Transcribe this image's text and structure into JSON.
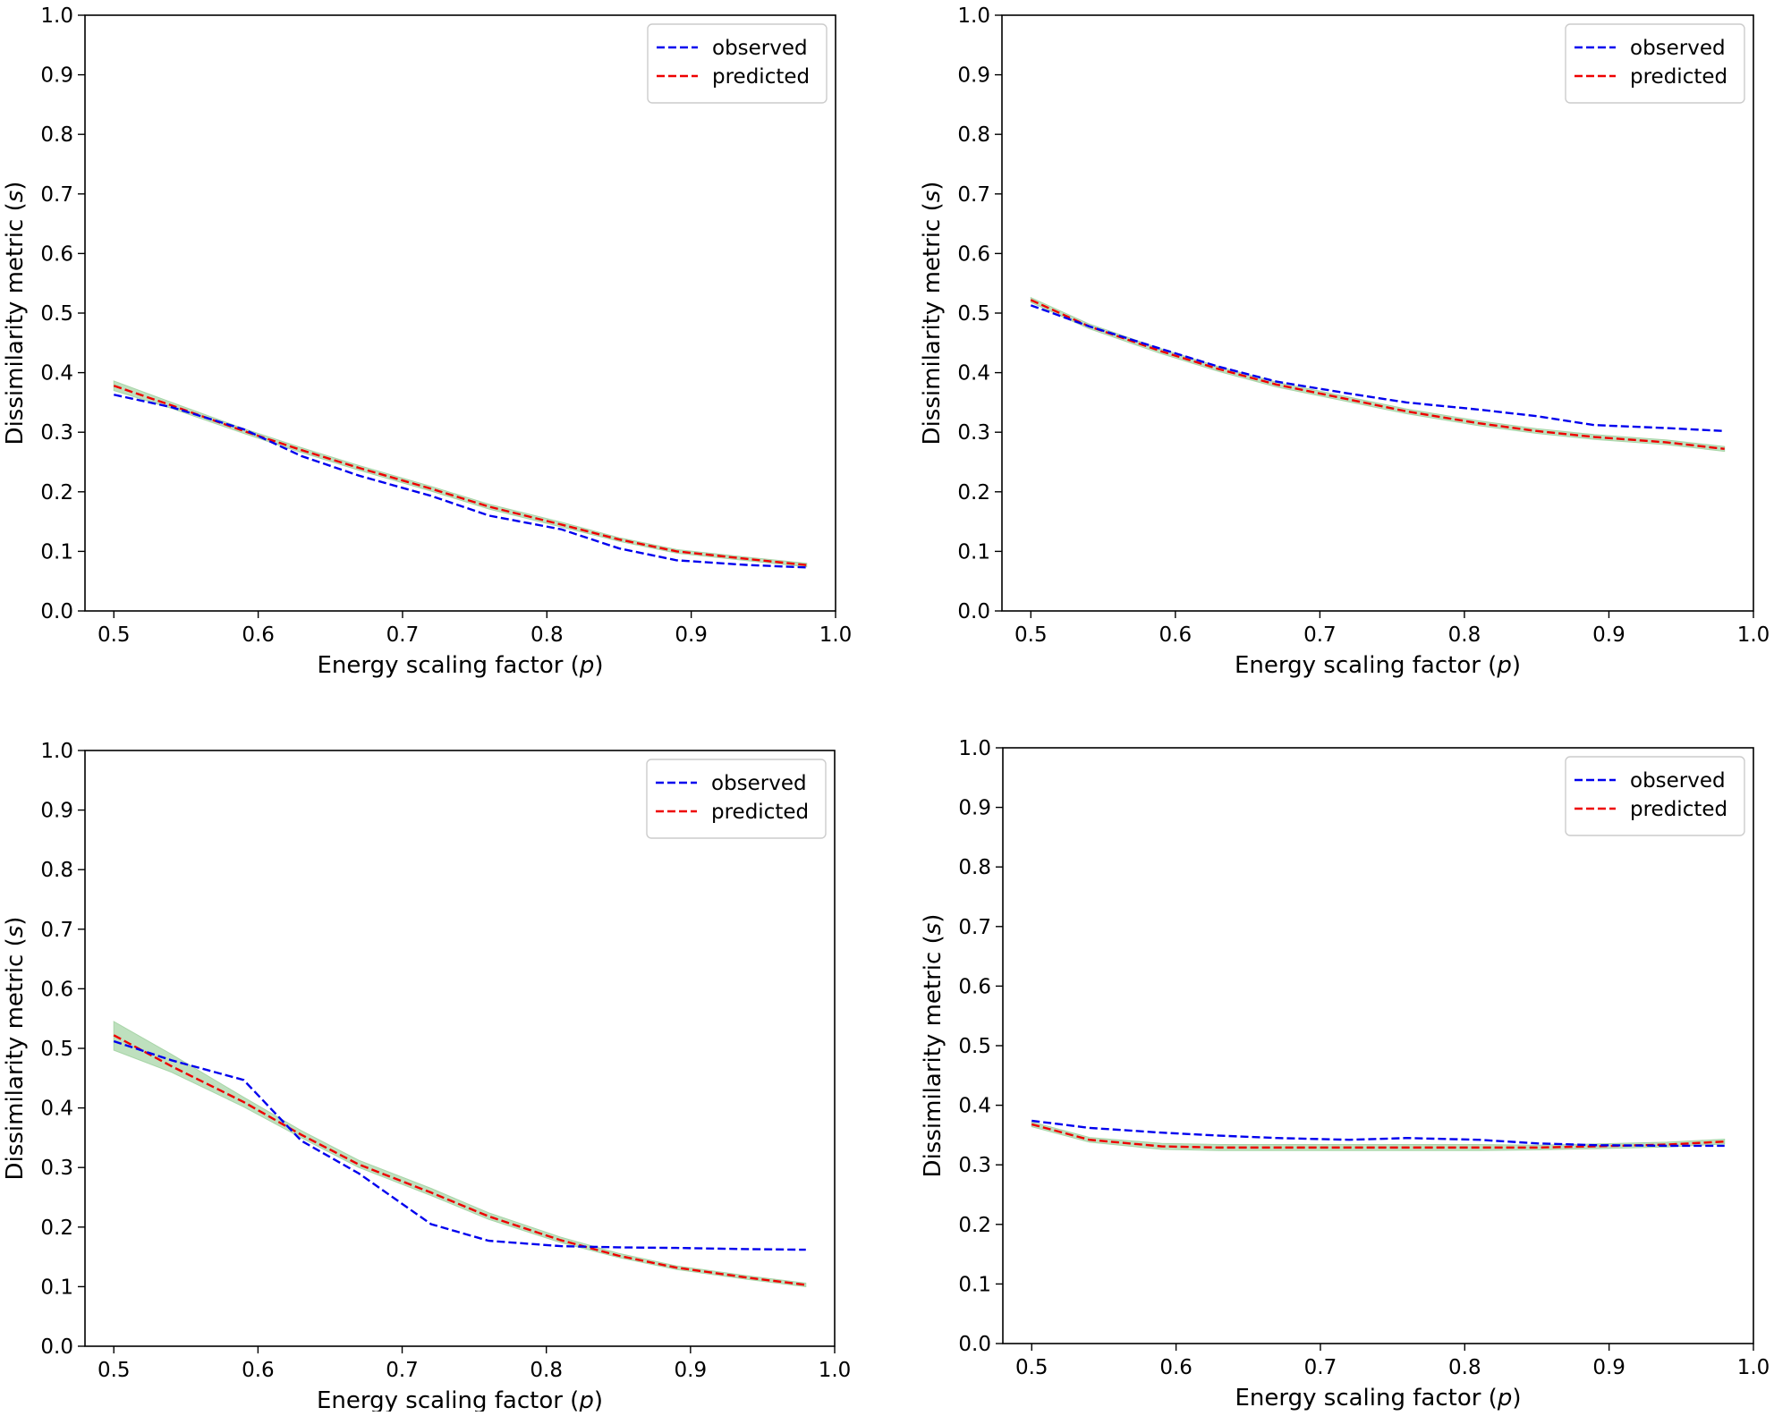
{
  "figure": {
    "colors": {
      "observed": "#0000ee",
      "predicted": "#ee0000",
      "band": "#a8d5a8",
      "frame": "#000000"
    }
  },
  "chart_data": [
    {
      "type": "line",
      "panel": "top-left",
      "xlabel_prefix": "Energy scaling factor (",
      "xlabel_var": "p",
      "xlabel_suffix": ")",
      "ylabel_prefix": "Dissimilarity metric (",
      "ylabel_var": "s",
      "ylabel_suffix": ")",
      "xlim": [
        0.48,
        1.0
      ],
      "ylim": [
        0.0,
        1.0
      ],
      "xticks": [
        "0.5",
        "0.6",
        "0.7",
        "0.8",
        "0.9",
        "1.0"
      ],
      "yticks": [
        "0.0",
        "0.1",
        "0.2",
        "0.3",
        "0.4",
        "0.5",
        "0.6",
        "0.7",
        "0.8",
        "0.9",
        "1.0"
      ],
      "legend_position": "top-right",
      "x": [
        0.5,
        0.54,
        0.59,
        0.63,
        0.67,
        0.72,
        0.76,
        0.81,
        0.85,
        0.89,
        0.94,
        0.98
      ],
      "series": [
        {
          "name": "observed",
          "values": [
            0.363,
            0.342,
            0.305,
            0.26,
            0.227,
            0.193,
            0.16,
            0.137,
            0.105,
            0.085,
            0.077,
            0.073
          ]
        },
        {
          "name": "predicted",
          "values": [
            0.378,
            0.345,
            0.302,
            0.27,
            0.24,
            0.205,
            0.175,
            0.145,
            0.12,
            0.1,
            0.087,
            0.077
          ]
        }
      ],
      "band": {
        "lower": [
          0.37,
          0.34,
          0.298,
          0.266,
          0.236,
          0.201,
          0.171,
          0.141,
          0.117,
          0.097,
          0.084,
          0.074
        ],
        "upper": [
          0.386,
          0.35,
          0.306,
          0.274,
          0.244,
          0.209,
          0.179,
          0.149,
          0.123,
          0.103,
          0.09,
          0.08
        ]
      }
    },
    {
      "type": "line",
      "panel": "top-right",
      "xlabel_prefix": "Energy scaling factor (",
      "xlabel_var": "p",
      "xlabel_suffix": ")",
      "ylabel_prefix": "Dissimilarity metric (",
      "ylabel_var": "s",
      "ylabel_suffix": ")",
      "xlim": [
        0.48,
        1.0
      ],
      "ylim": [
        0.0,
        1.0
      ],
      "xticks": [
        "0.5",
        "0.6",
        "0.7",
        "0.8",
        "0.9",
        "1.0"
      ],
      "yticks": [
        "0.0",
        "0.1",
        "0.2",
        "0.3",
        "0.4",
        "0.5",
        "0.6",
        "0.7",
        "0.8",
        "0.9",
        "1.0"
      ],
      "legend_position": "top-right",
      "x": [
        0.5,
        0.54,
        0.59,
        0.63,
        0.67,
        0.72,
        0.76,
        0.81,
        0.85,
        0.89,
        0.94,
        0.98
      ],
      "series": [
        {
          "name": "observed",
          "values": [
            0.513,
            0.478,
            0.44,
            0.41,
            0.385,
            0.365,
            0.35,
            0.338,
            0.327,
            0.312,
            0.307,
            0.302
          ]
        },
        {
          "name": "predicted",
          "values": [
            0.522,
            0.478,
            0.436,
            0.406,
            0.38,
            0.355,
            0.335,
            0.315,
            0.302,
            0.292,
            0.283,
            0.272
          ]
        }
      ],
      "band": {
        "lower": [
          0.518,
          0.474,
          0.432,
          0.402,
          0.376,
          0.351,
          0.331,
          0.311,
          0.298,
          0.288,
          0.279,
          0.268
        ],
        "upper": [
          0.526,
          0.482,
          0.44,
          0.41,
          0.384,
          0.359,
          0.339,
          0.319,
          0.306,
          0.296,
          0.287,
          0.276
        ]
      }
    },
    {
      "type": "line",
      "panel": "bottom-left",
      "xlabel_prefix": "Energy scaling factor (",
      "xlabel_var": "p",
      "xlabel_suffix": ")",
      "ylabel_prefix": "Dissimilarity metric (",
      "ylabel_var": "s",
      "ylabel_suffix": ")",
      "xlim": [
        0.48,
        1.0
      ],
      "ylim": [
        0.0,
        1.0
      ],
      "xticks": [
        "0.5",
        "0.6",
        "0.7",
        "0.8",
        "0.9",
        "1.0"
      ],
      "yticks": [
        "0.0",
        "0.1",
        "0.2",
        "0.3",
        "0.4",
        "0.5",
        "0.6",
        "0.7",
        "0.8",
        "0.9",
        "1.0"
      ],
      "legend_position": "top-right",
      "x": [
        0.5,
        0.54,
        0.59,
        0.63,
        0.67,
        0.72,
        0.76,
        0.81,
        0.85,
        0.89,
        0.94,
        0.98
      ],
      "series": [
        {
          "name": "observed",
          "values": [
            0.512,
            0.48,
            0.447,
            0.345,
            0.29,
            0.205,
            0.177,
            0.168,
            0.166,
            0.165,
            0.163,
            0.162
          ]
        },
        {
          "name": "predicted",
          "values": [
            0.522,
            0.47,
            0.41,
            0.355,
            0.305,
            0.258,
            0.218,
            0.178,
            0.152,
            0.132,
            0.115,
            0.103
          ]
        }
      ],
      "band": {
        "lower": [
          0.497,
          0.46,
          0.402,
          0.35,
          0.3,
          0.253,
          0.213,
          0.174,
          0.149,
          0.129,
          0.112,
          0.1
        ],
        "upper": [
          0.545,
          0.49,
          0.418,
          0.362,
          0.312,
          0.265,
          0.224,
          0.183,
          0.156,
          0.135,
          0.118,
          0.106
        ]
      }
    },
    {
      "type": "line",
      "panel": "bottom-right",
      "xlabel_prefix": "Energy scaling factor (",
      "xlabel_var": "p",
      "xlabel_suffix": ")",
      "ylabel_prefix": "Dissimilarity metric (",
      "ylabel_var": "s",
      "ylabel_suffix": ")",
      "xlim": [
        0.48,
        1.0
      ],
      "ylim": [
        0.0,
        1.0
      ],
      "xticks": [
        "0.5",
        "0.6",
        "0.7",
        "0.8",
        "0.9",
        "1.0"
      ],
      "yticks": [
        "0.0",
        "0.1",
        "0.2",
        "0.3",
        "0.4",
        "0.5",
        "0.6",
        "0.7",
        "0.8",
        "0.9",
        "1.0"
      ],
      "legend_position": "top-right",
      "x": [
        0.5,
        0.54,
        0.59,
        0.63,
        0.67,
        0.72,
        0.76,
        0.81,
        0.85,
        0.89,
        0.94,
        0.98
      ],
      "series": [
        {
          "name": "observed",
          "values": [
            0.374,
            0.362,
            0.354,
            0.349,
            0.345,
            0.342,
            0.345,
            0.342,
            0.336,
            0.333,
            0.332,
            0.332
          ]
        },
        {
          "name": "predicted",
          "values": [
            0.368,
            0.342,
            0.331,
            0.329,
            0.329,
            0.329,
            0.329,
            0.329,
            0.329,
            0.331,
            0.334,
            0.339
          ]
        }
      ],
      "band": {
        "lower": [
          0.364,
          0.338,
          0.326,
          0.324,
          0.324,
          0.324,
          0.324,
          0.324,
          0.325,
          0.327,
          0.33,
          0.335
        ],
        "upper": [
          0.372,
          0.346,
          0.336,
          0.334,
          0.334,
          0.334,
          0.334,
          0.334,
          0.333,
          0.335,
          0.338,
          0.343
        ]
      }
    }
  ]
}
